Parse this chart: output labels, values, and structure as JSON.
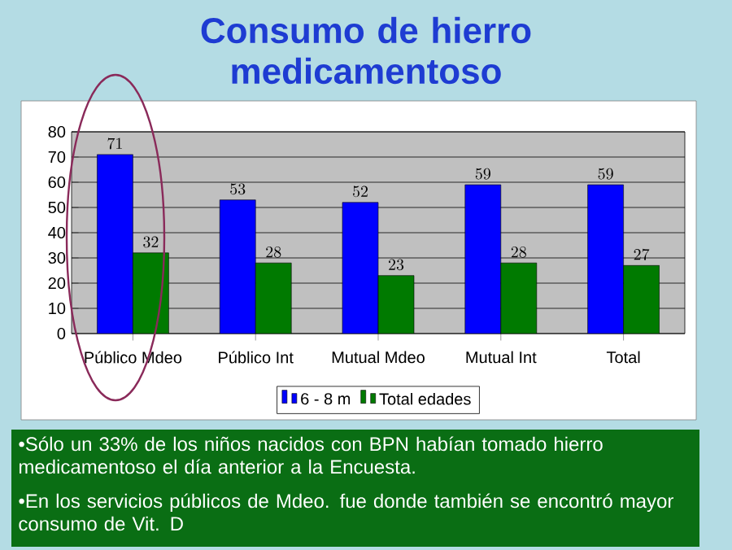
{
  "chart_data": {
    "type": "bar",
    "title": "Consumo de hierro medicamentoso",
    "categories": [
      "Público Mdeo",
      "Público Int",
      "Mutual Mdeo",
      "Mutual Int",
      "Total"
    ],
    "series": [
      {
        "name": "6 - 8 m",
        "color": "#0000ff",
        "values": [
          71,
          53,
          52,
          59,
          59
        ]
      },
      {
        "name": "Total edades",
        "color": "#007a00",
        "values": [
          32,
          28,
          23,
          28,
          27
        ]
      }
    ],
    "ylim": [
      0,
      80
    ],
    "yticks": [
      0,
      10,
      20,
      30,
      40,
      50,
      60,
      70,
      80
    ],
    "grid": "y",
    "legend": "bottom",
    "data_labels": true,
    "annotations": [
      "•Sólo un 33% de los niños nacidos con BPN habían tomado hierro medicamentoso el día anterior a la Encuesta.",
      "•En los servicios públicos de Mdeo. fue donde también se encontró mayor consumo de Vit. D"
    ]
  }
}
